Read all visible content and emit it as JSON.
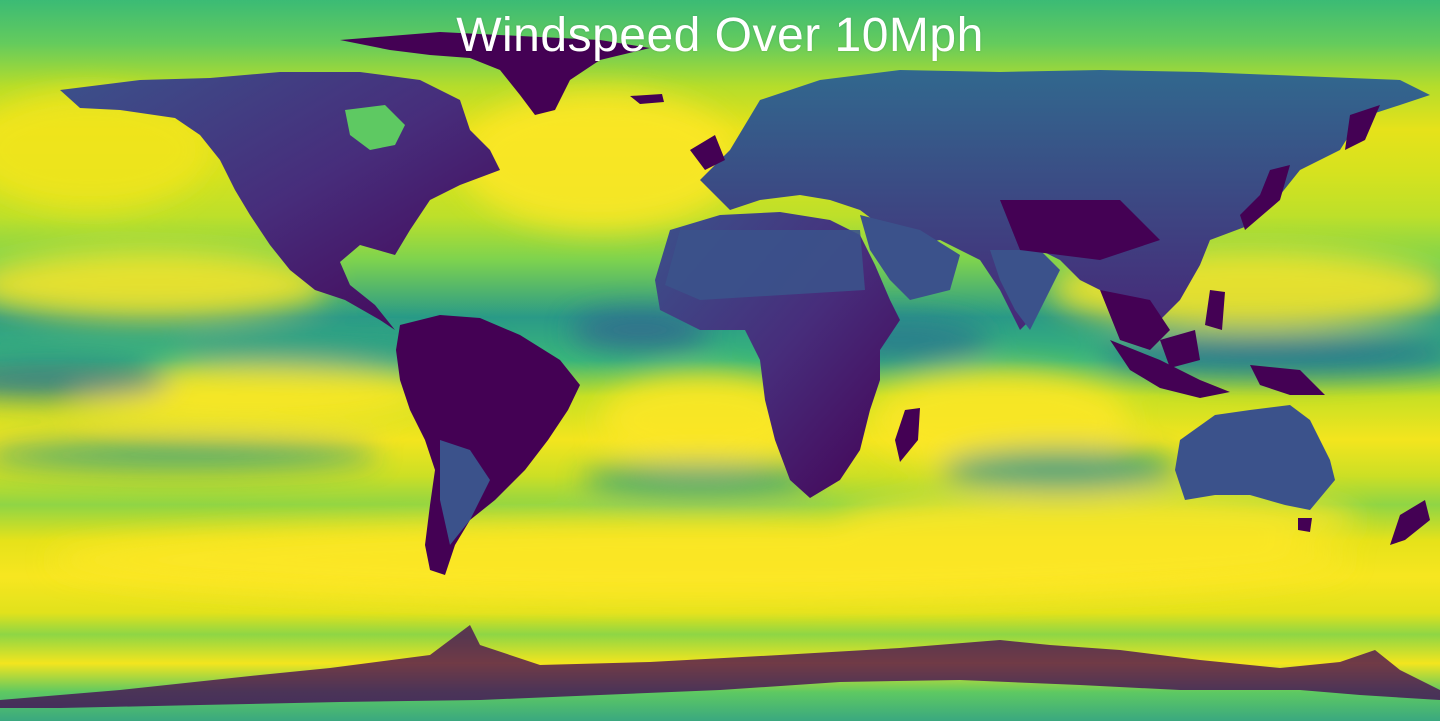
{
  "map": {
    "title": "Windspeed Over 10Mph",
    "projection": "equirectangular",
    "colormap": "viridis",
    "colors": {
      "low": "#440154",
      "land_mid": "#3b528b",
      "mid": "#21918c",
      "high_mid": "#5ec962",
      "high": "#fde725"
    },
    "regions": [
      {
        "name": "north-america"
      },
      {
        "name": "greenland"
      },
      {
        "name": "south-america"
      },
      {
        "name": "africa"
      },
      {
        "name": "eurasia"
      },
      {
        "name": "arabia"
      },
      {
        "name": "india"
      },
      {
        "name": "southeast-asia"
      },
      {
        "name": "japan"
      },
      {
        "name": "madagascar"
      },
      {
        "name": "australia"
      },
      {
        "name": "new-zealand"
      },
      {
        "name": "antarctica"
      },
      {
        "name": "uk-ireland"
      },
      {
        "name": "indonesia"
      },
      {
        "name": "iceland"
      },
      {
        "name": "hudson-bay"
      }
    ]
  }
}
